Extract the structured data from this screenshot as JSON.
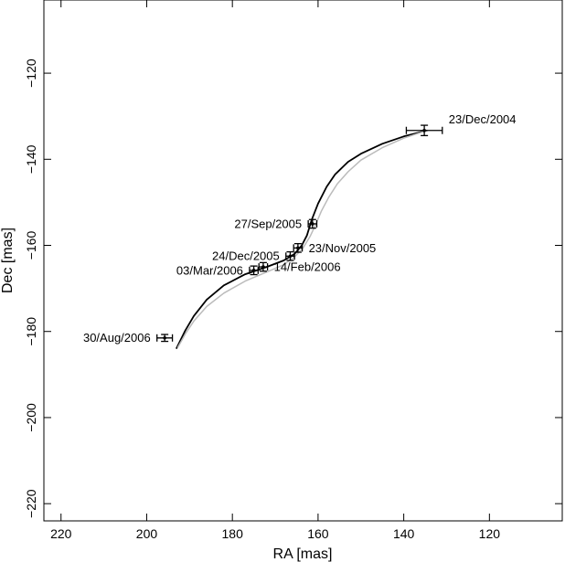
{
  "chart_data": {
    "type": "scatter",
    "title": "",
    "xlabel": "RA [mas]",
    "ylabel": "Dec [mas]",
    "xlim": [
      224,
      103
    ],
    "ylim": [
      -224,
      -103
    ],
    "x_ticks": [
      220,
      200,
      180,
      160,
      140,
      120
    ],
    "y_ticks": [
      -120,
      -140,
      -160,
      -180,
      -200,
      -220
    ],
    "x_tick_labels": [
      "220",
      "200",
      "180",
      "160",
      "140",
      "120"
    ],
    "y_tick_labels": [
      "−120",
      "−140",
      "−160",
      "−180",
      "−200",
      "−220"
    ],
    "grid": false,
    "legend": "none",
    "points": [
      {
        "date": "23/Dec/2004",
        "ra": 135.2,
        "dec": -133.3,
        "ra_err": 4.2,
        "dec_err": 1.2,
        "label_side": "right"
      },
      {
        "date": "27/Sep/2005",
        "ra": 161.3,
        "dec": -155.0,
        "ra_err": 1.0,
        "dec_err": 1.0,
        "label_side": "left"
      },
      {
        "date": "23/Nov/2005",
        "ra": 164.7,
        "dec": -160.6,
        "ra_err": 1.0,
        "dec_err": 1.0,
        "label_side": "right"
      },
      {
        "date": "24/Dec/2005",
        "ra": 166.5,
        "dec": -162.5,
        "ra_err": 1.0,
        "dec_err": 1.0,
        "label_side": "left"
      },
      {
        "date": "14/Feb/2006",
        "ra": 172.8,
        "dec": -165.0,
        "ra_err": 1.0,
        "dec_err": 1.0,
        "label_side": "right"
      },
      {
        "date": "03/Mar/2006",
        "ra": 175.0,
        "dec": -165.8,
        "ra_err": 1.0,
        "dec_err": 1.0,
        "label_side": "left"
      },
      {
        "date": "30/Aug/2006",
        "ra": 195.8,
        "dec": -181.5,
        "ra_err": 1.8,
        "dec_err": 0.8,
        "label_side": "left"
      }
    ],
    "series": [
      {
        "color": "#000000",
        "x": [
          134.5,
          140,
          145,
          150,
          153,
          156,
          158,
          160,
          161.5,
          162.6,
          163.8,
          165.5,
          168,
          172,
          177,
          182,
          186,
          189,
          191,
          193.1
        ],
        "y": [
          -133.3,
          -134.7,
          -136.4,
          -138.7,
          -140.6,
          -143.5,
          -146.4,
          -150.3,
          -154.1,
          -157.7,
          -160.0,
          -162.0,
          -163.5,
          -165.0,
          -166.7,
          -169.3,
          -172.6,
          -176.4,
          -179.8,
          -184.0
        ]
      },
      {
        "color": "#bbbbbb",
        "x": [
          134.5,
          140,
          145,
          150,
          153,
          155.5,
          157.5,
          159.2,
          160.5,
          161.8,
          163.5,
          165.5,
          168,
          172,
          177,
          182,
          186,
          189,
          191,
          192.8
        ],
        "y": [
          -133.3,
          -135.1,
          -137.3,
          -140.2,
          -142.9,
          -145.7,
          -148.8,
          -152.0,
          -155.0,
          -157.8,
          -160.6,
          -162.7,
          -164.5,
          -166.2,
          -168.3,
          -171.1,
          -174.2,
          -177.6,
          -180.6,
          -183.8
        ]
      }
    ]
  }
}
